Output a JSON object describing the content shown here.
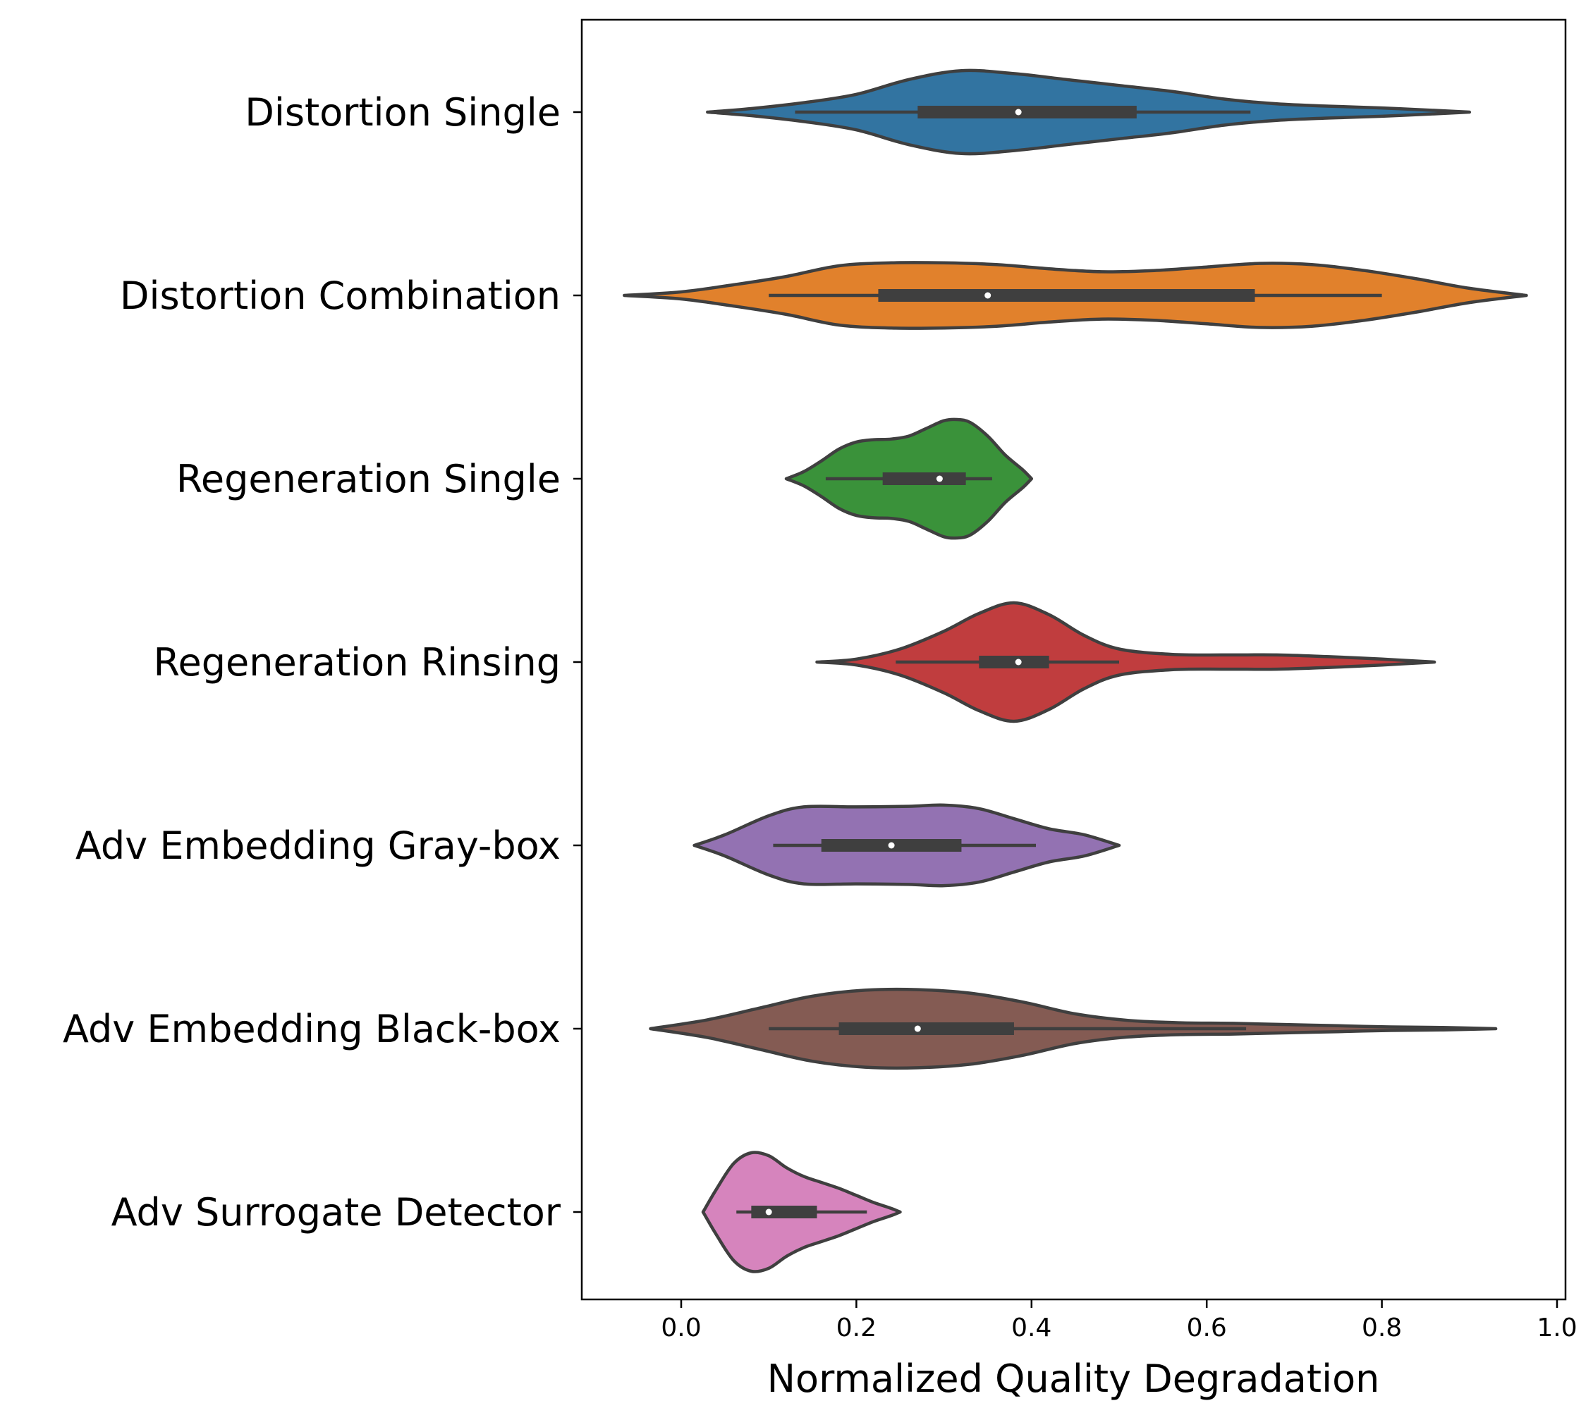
{
  "chart_data": {
    "type": "violin",
    "orientation": "horizontal",
    "xlabel": "Normalized Quality Degradation",
    "xlim": [
      -0.12,
      1.0
    ],
    "xticks": [
      0.0,
      0.2,
      0.4,
      0.6,
      0.8,
      1.0
    ],
    "xtick_labels": [
      "0.0",
      "0.2",
      "0.4",
      "0.6",
      "0.8",
      "1.0"
    ],
    "grid": false,
    "series": [
      {
        "name": "Distortion Single",
        "color": "#3274a1",
        "min": 0.03,
        "max": 0.9,
        "whisker_low": 0.13,
        "whisker_high": 0.65,
        "q1": 0.27,
        "q3": 0.52,
        "median": 0.385,
        "density": [
          [
            0.03,
            0.0
          ],
          [
            0.08,
            0.06
          ],
          [
            0.14,
            0.16
          ],
          [
            0.2,
            0.3
          ],
          [
            0.26,
            0.55
          ],
          [
            0.32,
            0.7
          ],
          [
            0.38,
            0.65
          ],
          [
            0.44,
            0.55
          ],
          [
            0.5,
            0.45
          ],
          [
            0.56,
            0.35
          ],
          [
            0.62,
            0.22
          ],
          [
            0.68,
            0.14
          ],
          [
            0.74,
            0.1
          ],
          [
            0.8,
            0.07
          ],
          [
            0.86,
            0.03
          ],
          [
            0.9,
            0.0
          ]
        ]
      },
      {
        "name": "Distortion Combination",
        "color": "#e1812c",
        "min": -0.065,
        "max": 0.965,
        "whisker_low": 0.1,
        "whisker_high": 0.8,
        "q1": 0.225,
        "q3": 0.655,
        "median": 0.35,
        "density": [
          [
            -0.065,
            0.0
          ],
          [
            0.0,
            0.06
          ],
          [
            0.06,
            0.18
          ],
          [
            0.12,
            0.32
          ],
          [
            0.18,
            0.5
          ],
          [
            0.24,
            0.55
          ],
          [
            0.3,
            0.55
          ],
          [
            0.36,
            0.52
          ],
          [
            0.42,
            0.45
          ],
          [
            0.48,
            0.4
          ],
          [
            0.54,
            0.42
          ],
          [
            0.6,
            0.48
          ],
          [
            0.66,
            0.54
          ],
          [
            0.72,
            0.52
          ],
          [
            0.78,
            0.42
          ],
          [
            0.84,
            0.28
          ],
          [
            0.9,
            0.12
          ],
          [
            0.965,
            0.0
          ]
        ]
      },
      {
        "name": "Regeneration Single",
        "color": "#3a923a",
        "min": 0.12,
        "max": 0.4,
        "whisker_low": 0.165,
        "whisker_high": 0.355,
        "q1": 0.23,
        "q3": 0.325,
        "median": 0.295,
        "density": [
          [
            0.12,
            0.0
          ],
          [
            0.14,
            0.12
          ],
          [
            0.16,
            0.3
          ],
          [
            0.18,
            0.5
          ],
          [
            0.2,
            0.62
          ],
          [
            0.22,
            0.66
          ],
          [
            0.24,
            0.67
          ],
          [
            0.26,
            0.72
          ],
          [
            0.28,
            0.85
          ],
          [
            0.3,
            0.98
          ],
          [
            0.315,
            1.0
          ],
          [
            0.33,
            0.95
          ],
          [
            0.35,
            0.72
          ],
          [
            0.37,
            0.4
          ],
          [
            0.39,
            0.15
          ],
          [
            0.4,
            0.0
          ]
        ]
      },
      {
        "name": "Regeneration Rinsing",
        "color": "#c03d3e",
        "min": 0.155,
        "max": 0.86,
        "whisker_low": 0.245,
        "whisker_high": 0.5,
        "q1": 0.34,
        "q3": 0.42,
        "median": 0.385,
        "density": [
          [
            0.155,
            0.0
          ],
          [
            0.2,
            0.05
          ],
          [
            0.25,
            0.22
          ],
          [
            0.3,
            0.52
          ],
          [
            0.34,
            0.82
          ],
          [
            0.38,
            1.0
          ],
          [
            0.42,
            0.8
          ],
          [
            0.46,
            0.45
          ],
          [
            0.5,
            0.22
          ],
          [
            0.56,
            0.13
          ],
          [
            0.62,
            0.12
          ],
          [
            0.68,
            0.12
          ],
          [
            0.74,
            0.09
          ],
          [
            0.8,
            0.05
          ],
          [
            0.86,
            0.0
          ]
        ]
      },
      {
        "name": "Adv Embedding Gray-box",
        "color": "#9372b2",
        "min": 0.015,
        "max": 0.5,
        "whisker_low": 0.105,
        "whisker_high": 0.405,
        "q1": 0.16,
        "q3": 0.32,
        "median": 0.24,
        "density": [
          [
            0.015,
            0.0
          ],
          [
            0.05,
            0.18
          ],
          [
            0.1,
            0.5
          ],
          [
            0.14,
            0.65
          ],
          [
            0.2,
            0.65
          ],
          [
            0.26,
            0.66
          ],
          [
            0.3,
            0.68
          ],
          [
            0.34,
            0.62
          ],
          [
            0.38,
            0.45
          ],
          [
            0.42,
            0.28
          ],
          [
            0.46,
            0.18
          ],
          [
            0.5,
            0.0
          ]
        ]
      },
      {
        "name": "Adv Embedding Black-box",
        "color": "#845b53",
        "min": -0.035,
        "max": 0.93,
        "whisker_low": 0.1,
        "whisker_high": 0.645,
        "q1": 0.18,
        "q3": 0.38,
        "median": 0.27,
        "density": [
          [
            -0.035,
            0.0
          ],
          [
            0.03,
            0.15
          ],
          [
            0.09,
            0.35
          ],
          [
            0.15,
            0.55
          ],
          [
            0.21,
            0.65
          ],
          [
            0.27,
            0.66
          ],
          [
            0.33,
            0.6
          ],
          [
            0.39,
            0.45
          ],
          [
            0.45,
            0.25
          ],
          [
            0.51,
            0.14
          ],
          [
            0.57,
            0.1
          ],
          [
            0.63,
            0.09
          ],
          [
            0.69,
            0.07
          ],
          [
            0.75,
            0.05
          ],
          [
            0.81,
            0.03
          ],
          [
            0.87,
            0.02
          ],
          [
            0.93,
            0.0
          ]
        ]
      },
      {
        "name": "Adv Surrogate Detector",
        "color": "#d684bd",
        "min": 0.025,
        "max": 0.25,
        "whisker_low": 0.063,
        "whisker_high": 0.212,
        "q1": 0.08,
        "q3": 0.155,
        "median": 0.1,
        "density": [
          [
            0.025,
            0.0
          ],
          [
            0.04,
            0.38
          ],
          [
            0.06,
            0.82
          ],
          [
            0.08,
            1.0
          ],
          [
            0.1,
            0.95
          ],
          [
            0.12,
            0.75
          ],
          [
            0.14,
            0.6
          ],
          [
            0.16,
            0.5
          ],
          [
            0.18,
            0.4
          ],
          [
            0.2,
            0.28
          ],
          [
            0.22,
            0.16
          ],
          [
            0.24,
            0.06
          ],
          [
            0.25,
            0.0
          ]
        ]
      }
    ]
  }
}
